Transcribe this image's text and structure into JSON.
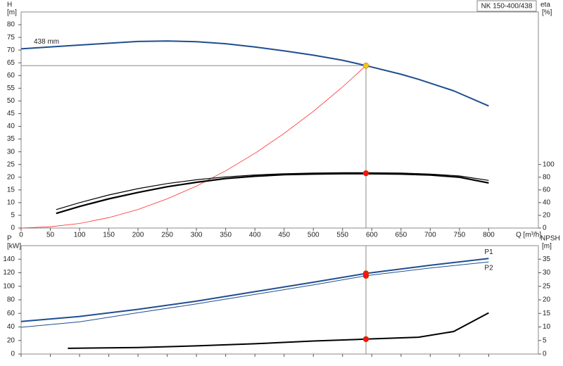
{
  "chart_data": [
    {
      "type": "line",
      "title": "NK 150-400/438",
      "x_label": "Q [m³/h]",
      "y_label": "H",
      "y_unit": "[m]",
      "y2_label": "eta",
      "y2_unit": "[%]",
      "xlim": [
        0,
        885
      ],
      "xticks": [
        0,
        50,
        100,
        150,
        200,
        250,
        300,
        350,
        400,
        450,
        500,
        550,
        600,
        650,
        700,
        750,
        800
      ],
      "ylim": [
        0,
        85
      ],
      "yticks": [
        0,
        5,
        10,
        15,
        20,
        25,
        30,
        35,
        40,
        45,
        50,
        55,
        60,
        65,
        70,
        75,
        80
      ],
      "y2lim": [
        0,
        340
      ],
      "y2ticks": [
        0,
        20,
        40,
        60,
        80,
        100
      ],
      "tick_labels": true,
      "series": [
        {
          "name": "438 mm",
          "name_position": "start",
          "color": "#1f4e8f",
          "line_width": 2,
          "x": [
            0,
            100,
            200,
            250,
            300,
            350,
            400,
            450,
            500,
            550,
            590,
            650,
            680,
            740,
            800
          ],
          "values": [
            70.5,
            72,
            73.4,
            73.6,
            73.3,
            72.5,
            71.2,
            69.7,
            68,
            66,
            63.9,
            60.5,
            58.5,
            54,
            48
          ]
        },
        {
          "color": "#ff2a2a",
          "line_width": 0.8,
          "x": [
            0,
            50,
            100,
            150,
            200,
            250,
            300,
            350,
            400,
            450,
            500,
            550,
            590
          ],
          "values": [
            0,
            0.5,
            1.8,
            4.1,
            7.3,
            11.5,
            16.5,
            22.5,
            29.4,
            37.2,
            45.9,
            55.5,
            63.9
          ]
        },
        {
          "color": "#000000",
          "axis": "y2",
          "line_width": 1.2,
          "x": [
            60,
            100,
            150,
            200,
            250,
            300,
            350,
            400,
            450,
            500,
            550,
            590,
            650,
            700,
            750,
            800
          ],
          "values": [
            29,
            40,
            52,
            62,
            70,
            76,
            80.5,
            83.5,
            85.5,
            86.5,
            87,
            87,
            86.5,
            85,
            82,
            75
          ]
        },
        {
          "color": "#000000",
          "axis": "y2",
          "line_width": 2.2,
          "x": [
            60,
            100,
            150,
            200,
            250,
            300,
            350,
            400,
            450,
            500,
            550,
            590,
            650,
            700,
            750,
            800
          ],
          "values": [
            23,
            34,
            46,
            56,
            65,
            72,
            78,
            81.5,
            84,
            85,
            85.5,
            85.5,
            85,
            83.5,
            80,
            71
          ]
        }
      ],
      "points": [
        {
          "x": 590,
          "y": 63.9,
          "color": "#f5c518",
          "guides": true
        },
        {
          "x": 590,
          "y": 86.2,
          "axis": "y2",
          "color": "#ff1010"
        }
      ]
    },
    {
      "type": "line",
      "y_label": "P",
      "y_unit": "[kW]",
      "y2_label": "NPSH",
      "y2_unit": "[m]",
      "xlim": [
        0,
        885
      ],
      "xticks": [
        0,
        50,
        100,
        150,
        200,
        250,
        300,
        350,
        400,
        450,
        500,
        550,
        600,
        650,
        700,
        750,
        800
      ],
      "ylim": [
        0,
        160
      ],
      "yticks": [
        0,
        20,
        40,
        60,
        80,
        100,
        120,
        140
      ],
      "y2lim": [
        0,
        40
      ],
      "y2ticks": [
        0,
        5,
        10,
        15,
        20,
        25,
        30,
        35
      ],
      "tick_labels": false,
      "series": [
        {
          "name": "P1",
          "name_position": "end",
          "color": "#1f4e8f",
          "line_width": 2,
          "x": [
            0,
            100,
            200,
            300,
            400,
            500,
            590,
            700,
            800
          ],
          "values": [
            48,
            55.5,
            66,
            78,
            92,
            106,
            119,
            131,
            141
          ]
        },
        {
          "name": "P2",
          "name_position": "end",
          "color": "#1f4e8f",
          "line_width": 1,
          "x": [
            0,
            100,
            200,
            300,
            400,
            500,
            590,
            700,
            800
          ],
          "values": [
            39.5,
            47.5,
            61,
            74,
            88,
            102,
            115.5,
            127,
            136
          ]
        },
        {
          "color": "#000000",
          "axis": "y2",
          "line_width": 2,
          "x": [
            80,
            200,
            300,
            400,
            500,
            590,
            680,
            740,
            800
          ],
          "values": [
            2.1,
            2.4,
            3,
            3.8,
            4.8,
            5.5,
            6.2,
            8.3,
            15.2
          ]
        }
      ],
      "points": [
        {
          "x": 590,
          "y": 119,
          "color": "#ff1010",
          "guides": true
        },
        {
          "x": 590,
          "y": 115.5,
          "color": "#ff1010"
        },
        {
          "x": 590,
          "y": 5.5,
          "axis": "y2",
          "color": "#ff1010"
        }
      ]
    }
  ]
}
